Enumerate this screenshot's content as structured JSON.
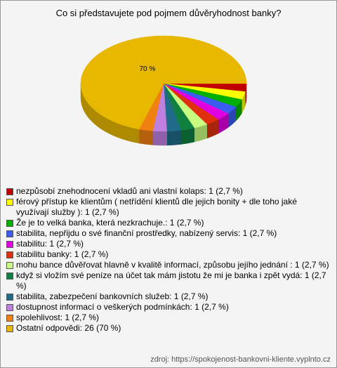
{
  "chart_data": {
    "type": "pie",
    "title": "Co si představujete pod pojmem důvěryhodnost banky?",
    "categories": [
      "nezpůsobí znehodnocení vkladů ani vlastní kolaps: 1 (2,7 %)",
      "férový přístup ke klientům ( netřídění klientů dle jejich bonity + dle toho jaké využívají služby ): 1 (2,7 %)",
      "Že je to velká banka, která nezkrachuje.: 1 (2,7 %)",
      "stabilita, nepřijdu o své finanční prostředky, nabízený servis: 1 (2,7 %)",
      "stabilitu: 1 (2,7 %)",
      "stabilitu banky: 1 (2,7 %)",
      "mohu bance důvěřovat hlavně v kvalitě informací, způsobu jejího jednání : 1 (2,7 %)",
      "když si vložím své peníze na účet tak mám jistotu že mi je banka i zpět vydá: 1 (2,7 %)",
      "stabilita, zabezpečení bankovních služeb: 1 (2,7 %)",
      "dostupnost informací o veškerých podmínkách: 1 (2,7 %)",
      "spolehlivost: 1 (2,7 %)",
      "Ostatní odpovědi: 26 (70 %)"
    ],
    "values": [
      2.7,
      2.7,
      2.7,
      2.7,
      2.7,
      2.7,
      2.7,
      2.7,
      2.7,
      2.7,
      2.7,
      70
    ],
    "value_labels": [
      null,
      null,
      null,
      null,
      null,
      null,
      null,
      null,
      null,
      null,
      null,
      "70 %"
    ],
    "colors": [
      "#c00000",
      "#ffff00",
      "#00b000",
      "#3a5cf0",
      "#e000e0",
      "#e03010",
      "#c8ff80",
      "#108040",
      "#206a8a",
      "#c080e0",
      "#f08010",
      "#e8b800"
    ],
    "source": "zdroj: https://spokojenost-bankovni-kliente.vyplnto.cz"
  }
}
